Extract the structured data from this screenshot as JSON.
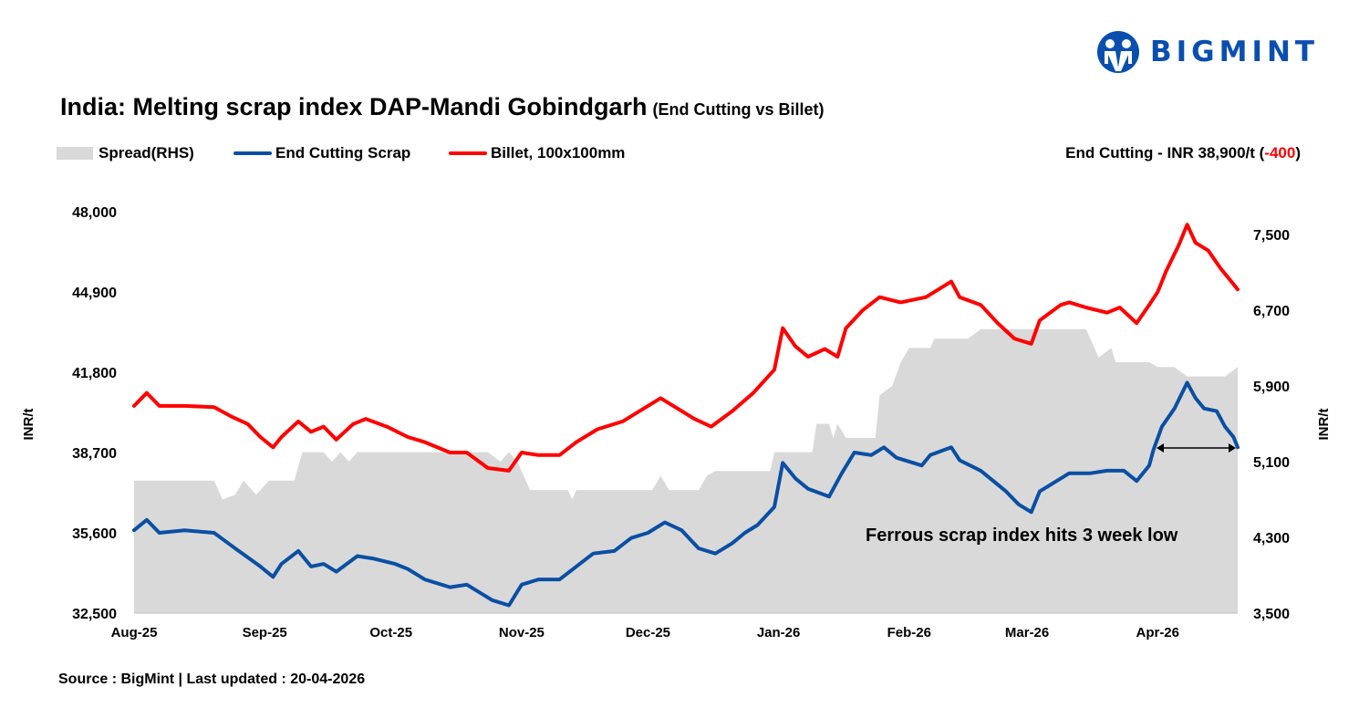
{
  "logo": {
    "text": "BIGMINT",
    "color": "#0a4fb0"
  },
  "title": "India: Melting scrap index DAP-Mandi Gobindgarh",
  "subtitle": "(End Cutting vs Billet)",
  "headline": {
    "prefix": "End Cutting - INR 38,900/t (",
    "change": "-400",
    "suffix": ")"
  },
  "footer": "Source : BigMint | Last updated : 20-04-2026",
  "chart_data": {
    "type": "line",
    "legend_position": "top-left",
    "grid": false,
    "x_ticks": [
      {
        "date": "2025-08-01",
        "label": "Aug-25"
      },
      {
        "date": "2025-09-01",
        "label": "Sep-25"
      },
      {
        "date": "2025-10-01",
        "label": "Oct-25"
      },
      {
        "date": "2025-11-01",
        "label": "Nov-25"
      },
      {
        "date": "2025-12-01",
        "label": "Dec-25"
      },
      {
        "date": "2026-01-01",
        "label": "Jan-26"
      },
      {
        "date": "2026-02-01",
        "label": "Feb-26"
      },
      {
        "date": "2026-03-01",
        "label": "Mar-26"
      },
      {
        "date": "2026-04-01",
        "label": "Apr-26"
      }
    ],
    "xlim": [
      "2025-08-01",
      "2026-04-20"
    ],
    "y_left": {
      "label": "INR/t",
      "lim": [
        32500,
        48000
      ],
      "ticks": [
        "32,500",
        "35,600",
        "38,700",
        "41,800",
        "44,900",
        "48,000"
      ]
    },
    "y_right": {
      "label": "INR/t",
      "lim": [
        3500,
        7740
      ],
      "ticks": [
        "3,500",
        "4,300",
        "5,100",
        "5,900",
        "6,700",
        "7,500"
      ]
    },
    "annotation": "Ferrous scrap index hits 3 week low",
    "series": [
      {
        "name": "Spread(RHS)",
        "kind": "area",
        "axis": "right",
        "color": "#d9d9d9",
        "points": [
          [
            "2025-08-01",
            4900
          ],
          [
            "2025-08-20",
            4900
          ],
          [
            "2025-08-22",
            4700
          ],
          [
            "2025-08-25",
            4750
          ],
          [
            "2025-08-27",
            4900
          ],
          [
            "2025-08-30",
            4750
          ],
          [
            "2025-09-02",
            4900
          ],
          [
            "2025-09-08",
            4900
          ],
          [
            "2025-09-10",
            5200
          ],
          [
            "2025-09-15",
            5200
          ],
          [
            "2025-09-17",
            5100
          ],
          [
            "2025-09-19",
            5200
          ],
          [
            "2025-09-21",
            5100
          ],
          [
            "2025-09-23",
            5200
          ],
          [
            "2025-10-24",
            5200
          ],
          [
            "2025-10-27",
            5100
          ],
          [
            "2025-10-29",
            5200
          ],
          [
            "2025-10-31",
            5100
          ],
          [
            "2025-11-03",
            4800
          ],
          [
            "2025-11-12",
            4800
          ],
          [
            "2025-11-13",
            4700
          ],
          [
            "2025-11-14",
            4800
          ],
          [
            "2025-12-02",
            4800
          ],
          [
            "2025-12-04",
            4950
          ],
          [
            "2025-12-06",
            4800
          ],
          [
            "2025-12-13",
            4800
          ],
          [
            "2025-12-15",
            4950
          ],
          [
            "2025-12-17",
            5000
          ],
          [
            "2025-12-30",
            5000
          ],
          [
            "2025-12-31",
            5200
          ],
          [
            "2026-01-09",
            5200
          ],
          [
            "2026-01-10",
            5500
          ],
          [
            "2026-01-13",
            5500
          ],
          [
            "2026-01-14",
            5350
          ],
          [
            "2026-01-15",
            5500
          ],
          [
            "2026-01-17",
            5350
          ],
          [
            "2026-01-24",
            5350
          ],
          [
            "2026-01-25",
            5800
          ],
          [
            "2026-01-28",
            5900
          ],
          [
            "2026-01-30",
            6150
          ],
          [
            "2026-02-01",
            6300
          ],
          [
            "2026-02-06",
            6300
          ],
          [
            "2026-02-07",
            6400
          ],
          [
            "2026-02-15",
            6400
          ],
          [
            "2026-02-18",
            6500
          ],
          [
            "2026-03-15",
            6500
          ],
          [
            "2026-03-18",
            6200
          ],
          [
            "2026-03-21",
            6300
          ],
          [
            "2026-03-22",
            6150
          ],
          [
            "2026-03-30",
            6150
          ],
          [
            "2026-04-01",
            6100
          ],
          [
            "2026-04-05",
            6100
          ],
          [
            "2026-04-08",
            6000
          ],
          [
            "2026-04-17",
            6000
          ],
          [
            "2026-04-20",
            6100
          ]
        ]
      },
      {
        "name": "End Cutting Scrap",
        "kind": "line",
        "axis": "left",
        "color": "#0a4fa3",
        "points": [
          [
            "2025-08-01",
            35700
          ],
          [
            "2025-08-04",
            36100
          ],
          [
            "2025-08-07",
            35600
          ],
          [
            "2025-08-13",
            35700
          ],
          [
            "2025-08-20",
            35600
          ],
          [
            "2025-08-25",
            35000
          ],
          [
            "2025-08-31",
            34300
          ],
          [
            "2025-09-03",
            33900
          ],
          [
            "2025-09-05",
            34400
          ],
          [
            "2025-09-09",
            34900
          ],
          [
            "2025-09-12",
            34300
          ],
          [
            "2025-09-15",
            34400
          ],
          [
            "2025-09-18",
            34100
          ],
          [
            "2025-09-23",
            34700
          ],
          [
            "2025-09-27",
            34600
          ],
          [
            "2025-10-02",
            34400
          ],
          [
            "2025-10-05",
            34200
          ],
          [
            "2025-10-09",
            33800
          ],
          [
            "2025-10-15",
            33500
          ],
          [
            "2025-10-19",
            33600
          ],
          [
            "2025-10-25",
            33000
          ],
          [
            "2025-10-29",
            32800
          ],
          [
            "2025-11-01",
            33600
          ],
          [
            "2025-11-05",
            33800
          ],
          [
            "2025-11-10",
            33800
          ],
          [
            "2025-11-14",
            34300
          ],
          [
            "2025-11-18",
            34800
          ],
          [
            "2025-11-23",
            34900
          ],
          [
            "2025-11-27",
            35400
          ],
          [
            "2025-12-01",
            35600
          ],
          [
            "2025-12-05",
            36000
          ],
          [
            "2025-12-09",
            35700
          ],
          [
            "2025-12-13",
            35000
          ],
          [
            "2025-12-17",
            34800
          ],
          [
            "2025-12-21",
            35200
          ],
          [
            "2025-12-24",
            35600
          ],
          [
            "2025-12-27",
            35900
          ],
          [
            "2025-12-31",
            36600
          ],
          [
            "2026-01-02",
            38300
          ],
          [
            "2026-01-05",
            37700
          ],
          [
            "2026-01-08",
            37300
          ],
          [
            "2026-01-13",
            37000
          ],
          [
            "2026-01-16",
            37900
          ],
          [
            "2026-01-19",
            38700
          ],
          [
            "2026-01-23",
            38600
          ],
          [
            "2026-01-26",
            38900
          ],
          [
            "2026-01-29",
            38500
          ],
          [
            "2026-02-04",
            38200
          ],
          [
            "2026-02-06",
            38600
          ],
          [
            "2026-02-11",
            38900
          ],
          [
            "2026-02-13",
            38400
          ],
          [
            "2026-02-18",
            38000
          ],
          [
            "2026-02-21",
            37600
          ],
          [
            "2026-02-24",
            37200
          ],
          [
            "2026-02-27",
            36700
          ],
          [
            "2026-03-02",
            36400
          ],
          [
            "2026-03-04",
            37200
          ],
          [
            "2026-03-07",
            37500
          ],
          [
            "2026-03-11",
            37900
          ],
          [
            "2026-03-16",
            37900
          ],
          [
            "2026-03-20",
            38000
          ],
          [
            "2026-03-24",
            38000
          ],
          [
            "2026-03-27",
            37600
          ],
          [
            "2026-03-30",
            38200
          ],
          [
            "2026-03-31",
            38800
          ],
          [
            "2026-04-02",
            39700
          ],
          [
            "2026-04-05",
            40400
          ],
          [
            "2026-04-08",
            41400
          ],
          [
            "2026-04-10",
            40800
          ],
          [
            "2026-04-12",
            40400
          ],
          [
            "2026-04-15",
            40300
          ],
          [
            "2026-04-17",
            39700
          ],
          [
            "2026-04-19",
            39300
          ],
          [
            "2026-04-20",
            38900
          ]
        ]
      },
      {
        "name": "Billet, 100x100mm",
        "kind": "line",
        "axis": "left",
        "color": "#ff0000",
        "points": [
          [
            "2025-08-01",
            40500
          ],
          [
            "2025-08-04",
            41000
          ],
          [
            "2025-08-07",
            40500
          ],
          [
            "2025-08-13",
            40500
          ],
          [
            "2025-08-20",
            40450
          ],
          [
            "2025-08-24",
            40100
          ],
          [
            "2025-08-28",
            39800
          ],
          [
            "2025-08-31",
            39300
          ],
          [
            "2025-09-03",
            38900
          ],
          [
            "2025-09-05",
            39300
          ],
          [
            "2025-09-09",
            39900
          ],
          [
            "2025-09-12",
            39500
          ],
          [
            "2025-09-15",
            39700
          ],
          [
            "2025-09-18",
            39200
          ],
          [
            "2025-09-22",
            39800
          ],
          [
            "2025-09-25",
            40000
          ],
          [
            "2025-09-30",
            39700
          ],
          [
            "2025-10-05",
            39300
          ],
          [
            "2025-10-09",
            39100
          ],
          [
            "2025-10-15",
            38700
          ],
          [
            "2025-10-19",
            38700
          ],
          [
            "2025-10-24",
            38100
          ],
          [
            "2025-10-29",
            38000
          ],
          [
            "2025-11-01",
            38700
          ],
          [
            "2025-11-05",
            38600
          ],
          [
            "2025-11-10",
            38600
          ],
          [
            "2025-11-14",
            39100
          ],
          [
            "2025-11-19",
            39600
          ],
          [
            "2025-11-25",
            39900
          ],
          [
            "2025-11-29",
            40300
          ],
          [
            "2025-12-04",
            40800
          ],
          [
            "2025-12-08",
            40400
          ],
          [
            "2025-12-12",
            40000
          ],
          [
            "2025-12-16",
            39700
          ],
          [
            "2025-12-21",
            40300
          ],
          [
            "2025-12-26",
            41000
          ],
          [
            "2025-12-31",
            41900
          ],
          [
            "2026-01-02",
            43500
          ],
          [
            "2026-01-05",
            42800
          ],
          [
            "2026-01-08",
            42400
          ],
          [
            "2026-01-12",
            42700
          ],
          [
            "2026-01-15",
            42400
          ],
          [
            "2026-01-17",
            43500
          ],
          [
            "2026-01-21",
            44200
          ],
          [
            "2026-01-25",
            44700
          ],
          [
            "2026-01-30",
            44500
          ],
          [
            "2026-02-05",
            44700
          ],
          [
            "2026-02-11",
            45300
          ],
          [
            "2026-02-13",
            44700
          ],
          [
            "2026-02-18",
            44400
          ],
          [
            "2026-02-22",
            43700
          ],
          [
            "2026-02-26",
            43100
          ],
          [
            "2026-03-02",
            42900
          ],
          [
            "2026-03-04",
            43800
          ],
          [
            "2026-03-09",
            44400
          ],
          [
            "2026-03-11",
            44500
          ],
          [
            "2026-03-15",
            44300
          ],
          [
            "2026-03-20",
            44100
          ],
          [
            "2026-03-23",
            44300
          ],
          [
            "2026-03-27",
            43700
          ],
          [
            "2026-03-30",
            44400
          ],
          [
            "2026-04-01",
            44900
          ],
          [
            "2026-04-03",
            45700
          ],
          [
            "2026-04-06",
            46700
          ],
          [
            "2026-04-08",
            47500
          ],
          [
            "2026-04-10",
            46800
          ],
          [
            "2026-04-13",
            46500
          ],
          [
            "2026-04-16",
            45800
          ],
          [
            "2026-04-18",
            45400
          ],
          [
            "2026-04-20",
            45000
          ]
        ]
      }
    ]
  }
}
